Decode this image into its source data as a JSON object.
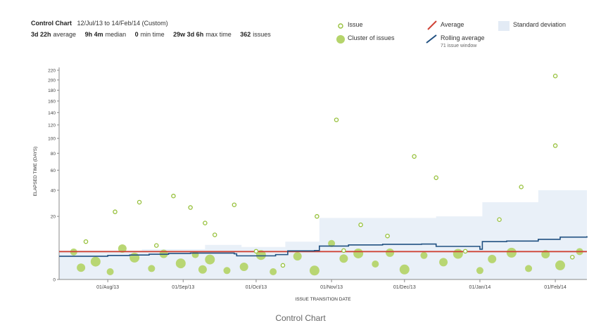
{
  "header": {
    "title": "Control Chart",
    "range": "12/Jul/13 to 14/Feb/14 (Custom)",
    "stats": [
      {
        "value": "3d 22h",
        "label": "average"
      },
      {
        "value": "9h 4m",
        "label": "median"
      },
      {
        "value": "0",
        "label": "min time"
      },
      {
        "value": "29w 3d 6h",
        "label": "max time"
      },
      {
        "value": "362",
        "label": "issues"
      }
    ]
  },
  "legend": {
    "issue": "Issue",
    "cluster": "Cluster of issues",
    "average": "Average",
    "rolling": "Rolling average",
    "rolling_sub": "71 issue window",
    "stddev": "Standard deviation"
  },
  "colors": {
    "issue": "#97c13c",
    "cluster": "#b5d46b",
    "average": "#d04437",
    "rolling": "#205081",
    "stddev": "#e9f0f8"
  },
  "caption": "Control Chart",
  "chart_data": {
    "type": "scatter",
    "xlabel": "ISSUE TRANSITION DATE",
    "ylabel": "ELAPSED TIME (DAYS)",
    "x_ticks": [
      "01/Aug/13",
      "01/Sep/13",
      "01/Oct/13",
      "01/Nov/13",
      "01/Dec/13",
      "01/Jan/14",
      "01/Feb/14"
    ],
    "y_ticks": [
      "0",
      "20",
      "40",
      "60",
      "80",
      "100",
      "120",
      "140",
      "160",
      "180",
      "200",
      "220"
    ],
    "y_tick_values": [
      0,
      20,
      40,
      60,
      80,
      100,
      120,
      140,
      160,
      180,
      200,
      220
    ],
    "x_range": [
      "2013-07-12",
      "2014-02-14"
    ],
    "average": 3.9,
    "issues": [
      {
        "x": "2013-07-23",
        "y": 7.2
      },
      {
        "x": "2013-08-04",
        "y": 23
      },
      {
        "x": "2013-08-14",
        "y": 30
      },
      {
        "x": "2013-08-21",
        "y": 5.8
      },
      {
        "x": "2013-08-28",
        "y": 35
      },
      {
        "x": "2013-09-04",
        "y": 26
      },
      {
        "x": "2013-09-10",
        "y": 16
      },
      {
        "x": "2013-09-14",
        "y": 10
      },
      {
        "x": "2013-09-22",
        "y": 28
      },
      {
        "x": "2013-10-01",
        "y": 4.0
      },
      {
        "x": "2013-10-12",
        "y": 1.0
      },
      {
        "x": "2013-10-26",
        "y": 20
      },
      {
        "x": "2013-11-03",
        "y": 128
      },
      {
        "x": "2013-11-06",
        "y": 4.2
      },
      {
        "x": "2013-11-13",
        "y": 15
      },
      {
        "x": "2013-11-24",
        "y": 9.5
      },
      {
        "x": "2013-12-05",
        "y": 76
      },
      {
        "x": "2013-12-14",
        "y": 52
      },
      {
        "x": "2013-12-26",
        "y": 4.0
      },
      {
        "x": "2014-01-09",
        "y": 18
      },
      {
        "x": "2014-01-18",
        "y": 43
      },
      {
        "x": "2014-02-01",
        "y": 90
      },
      {
        "x": "2014-02-01",
        "y": 208
      },
      {
        "x": "2014-02-08",
        "y": 2.5
      }
    ],
    "clusters": [
      {
        "x": "2013-07-18",
        "y": 3.8
      },
      {
        "x": "2013-07-21",
        "y": 0.7
      },
      {
        "x": "2013-07-27",
        "y": 1.6
      },
      {
        "x": "2013-08-02",
        "y": 0.3
      },
      {
        "x": "2013-08-07",
        "y": 4.8
      },
      {
        "x": "2013-08-12",
        "y": 2.4
      },
      {
        "x": "2013-08-19",
        "y": 0.6
      },
      {
        "x": "2013-08-24",
        "y": 3.3
      },
      {
        "x": "2013-08-31",
        "y": 1.3
      },
      {
        "x": "2013-09-06",
        "y": 3.1
      },
      {
        "x": "2013-09-09",
        "y": 0.5
      },
      {
        "x": "2013-09-12",
        "y": 2.0
      },
      {
        "x": "2013-09-19",
        "y": 0.4
      },
      {
        "x": "2013-09-26",
        "y": 0.8
      },
      {
        "x": "2013-10-03",
        "y": 3.0
      },
      {
        "x": "2013-10-08",
        "y": 0.3
      },
      {
        "x": "2013-10-18",
        "y": 2.7
      },
      {
        "x": "2013-10-25",
        "y": 0.4
      },
      {
        "x": "2013-11-01",
        "y": 6.5
      },
      {
        "x": "2013-11-06",
        "y": 2.2
      },
      {
        "x": "2013-11-12",
        "y": 3.4
      },
      {
        "x": "2013-11-19",
        "y": 1.2
      },
      {
        "x": "2013-11-25",
        "y": 3.6
      },
      {
        "x": "2013-12-01",
        "y": 0.5
      },
      {
        "x": "2013-12-09",
        "y": 2.9
      },
      {
        "x": "2013-12-17",
        "y": 1.5
      },
      {
        "x": "2013-12-23",
        "y": 3.3
      },
      {
        "x": "2014-01-01",
        "y": 0.4
      },
      {
        "x": "2014-01-06",
        "y": 2.1
      },
      {
        "x": "2014-01-14",
        "y": 3.6
      },
      {
        "x": "2014-01-21",
        "y": 0.6
      },
      {
        "x": "2014-01-28",
        "y": 3.2
      },
      {
        "x": "2014-02-03",
        "y": 1.0
      },
      {
        "x": "2014-02-11",
        "y": 3.9
      }
    ],
    "rolling_average": [
      {
        "x": "2013-07-12",
        "y": 2.7
      },
      {
        "x": "2013-07-24",
        "y": 2.7
      },
      {
        "x": "2013-08-01",
        "y": 2.9
      },
      {
        "x": "2013-08-10",
        "y": 3.0
      },
      {
        "x": "2013-08-18",
        "y": 3.2
      },
      {
        "x": "2013-08-26",
        "y": 3.4
      },
      {
        "x": "2013-09-04",
        "y": 3.5
      },
      {
        "x": "2013-09-13",
        "y": 3.5
      },
      {
        "x": "2013-09-22",
        "y": 3.3
      },
      {
        "x": "2013-09-23",
        "y": 2.8
      },
      {
        "x": "2013-10-09",
        "y": 3.1
      },
      {
        "x": "2013-10-14",
        "y": 4.1
      },
      {
        "x": "2013-10-25",
        "y": 4.2
      },
      {
        "x": "2013-10-27",
        "y": 5.6
      },
      {
        "x": "2013-11-08",
        "y": 6.0
      },
      {
        "x": "2013-11-22",
        "y": 6.2
      },
      {
        "x": "2013-12-08",
        "y": 6.3
      },
      {
        "x": "2013-12-14",
        "y": 5.5
      },
      {
        "x": "2014-01-01",
        "y": 4.6
      },
      {
        "x": "2014-01-02",
        "y": 7.2
      },
      {
        "x": "2014-01-12",
        "y": 7.4
      },
      {
        "x": "2014-01-25",
        "y": 8.1
      },
      {
        "x": "2014-02-03",
        "y": 9.0
      },
      {
        "x": "2014-02-14",
        "y": 9.4
      }
    ],
    "std_dev_upper": [
      {
        "x": "2013-07-12",
        "y": 4.2
      },
      {
        "x": "2013-08-15",
        "y": 4.6
      },
      {
        "x": "2013-09-10",
        "y": 6.0
      },
      {
        "x": "2013-09-25",
        "y": 5.3
      },
      {
        "x": "2013-10-13",
        "y": 7.2
      },
      {
        "x": "2013-10-27",
        "y": 19
      },
      {
        "x": "2013-12-14",
        "y": 20
      },
      {
        "x": "2014-01-02",
        "y": 30
      },
      {
        "x": "2014-01-25",
        "y": 40
      },
      {
        "x": "2014-02-14",
        "y": 48
      }
    ]
  }
}
